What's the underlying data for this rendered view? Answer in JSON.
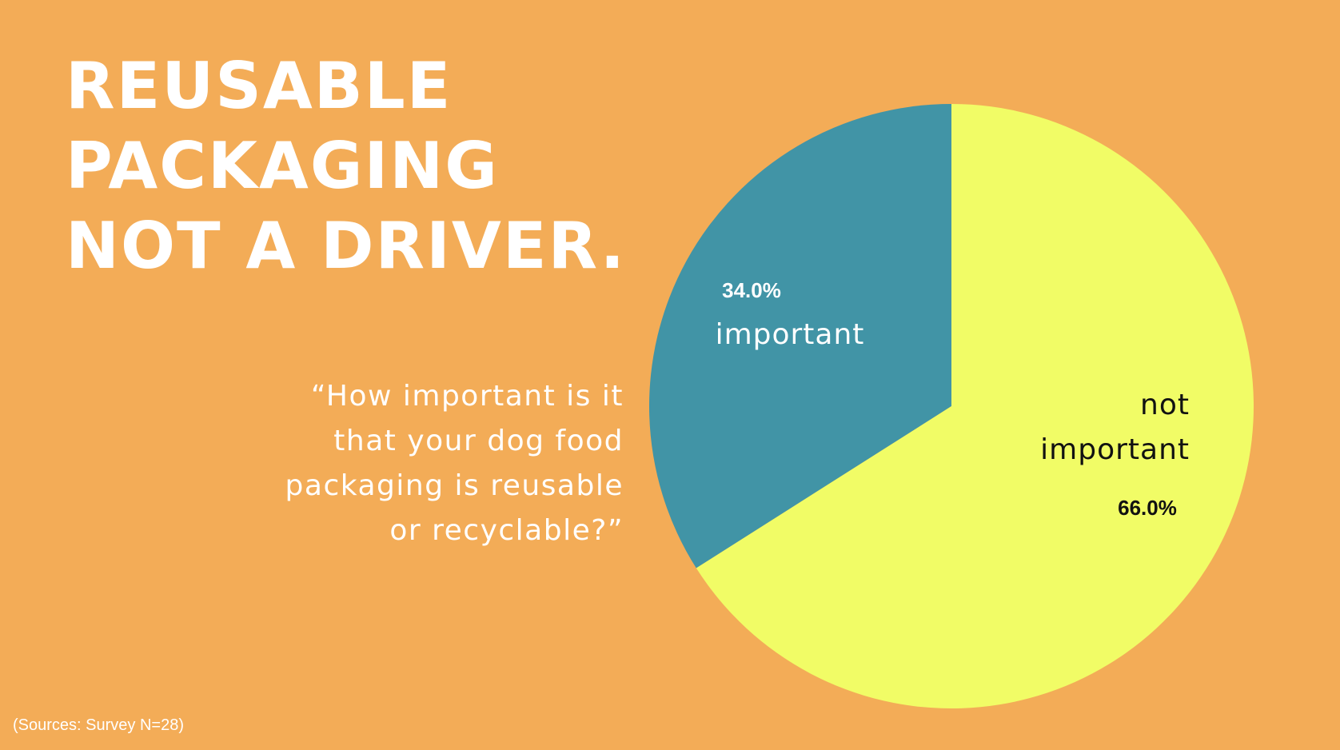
{
  "slide": {
    "background_color": "#F3AC57",
    "headline_lines": [
      "REUSABLE",
      "PACKAGING",
      "NOT A DRIVER."
    ],
    "question_lines": [
      "“How important is it",
      "that your dog food",
      "packaging is reusable",
      "or recyclable?”"
    ],
    "source": "(Sources: Survey N=28)",
    "source_color": "#FFFFFF"
  },
  "chart_data": {
    "type": "pie",
    "slices": [
      {
        "label_lines": [
          "important"
        ],
        "value": 34.0,
        "value_label": "34.0%",
        "color": "#4194A6",
        "text_color": "#FFFFFF"
      },
      {
        "label_lines": [
          "not",
          "important"
        ],
        "value": 66.0,
        "value_label": "66.0%",
        "color": "#F1FC66",
        "text_color": "#111111"
      }
    ],
    "start_angle_deg": 0,
    "direction": "clockwise"
  }
}
